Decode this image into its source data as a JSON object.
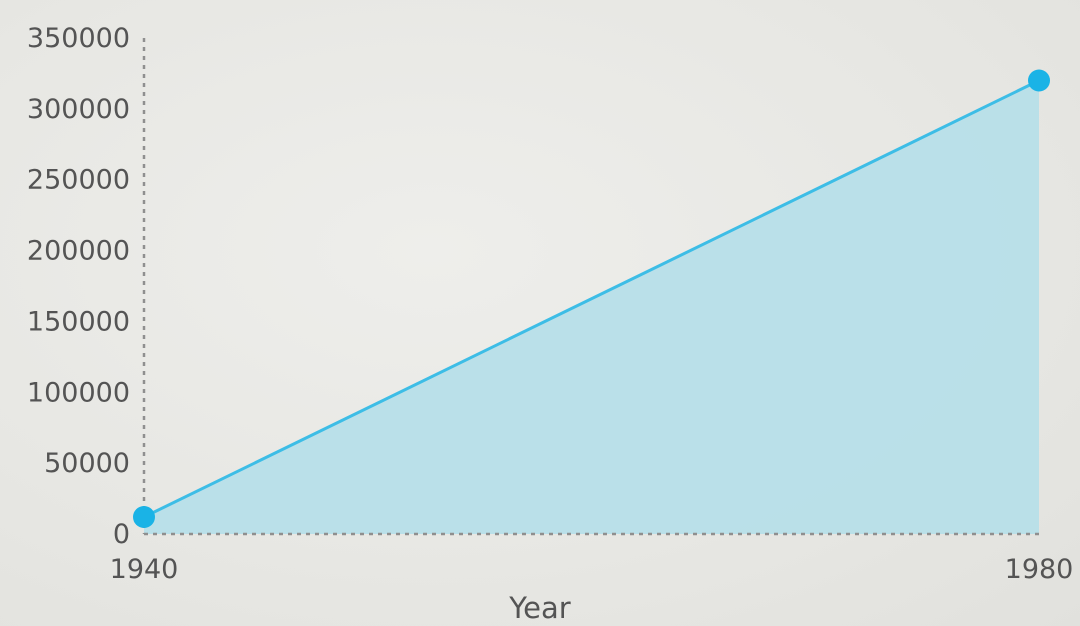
{
  "chart_data": {
    "type": "area",
    "title": "",
    "xlabel": "Year",
    "ylabel": "",
    "x": [
      1940,
      1980
    ],
    "series": [
      {
        "values": [
          12000,
          320000
        ]
      }
    ],
    "x_ticks": [
      "1940",
      "1980"
    ],
    "y_ticks": [
      "0",
      "50000",
      "100000",
      "150000",
      "200000",
      "250000",
      "300000",
      "350000"
    ],
    "xlim": [
      1940,
      1980
    ],
    "ylim": [
      0,
      350000
    ],
    "grid": false,
    "legend": "none",
    "colors": {
      "line": "#3dbde6",
      "fill": "#b5dfe9",
      "marker": "#1ab3e6"
    }
  }
}
